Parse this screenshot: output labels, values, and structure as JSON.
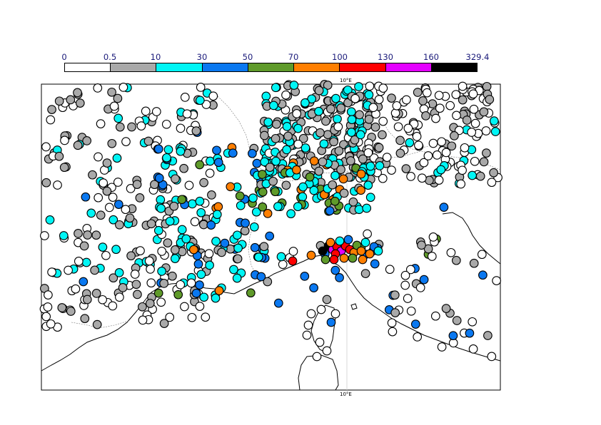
{
  "legend": {
    "labels": [
      "0",
      "0.5",
      "10",
      "30",
      "50",
      "70",
      "100",
      "130",
      "160",
      "329.4"
    ],
    "colors": [
      "#ffffff",
      "#a9a9a9",
      "#00f5f5",
      "#0a78f0",
      "#5f9a2a",
      "#ff7f00",
      "#ff0000",
      "#e400ff",
      "#000000"
    ]
  },
  "map": {
    "meridian_label_top": "10°E",
    "meridian_label_bottom": "10°E"
  },
  "stations": {
    "description_classes": [
      "0-0.5",
      "0.5-10",
      "10-30",
      "30-50",
      "50-70",
      "70-100",
      "100-130",
      "130-160",
      "160-329.4"
    ]
  }
}
